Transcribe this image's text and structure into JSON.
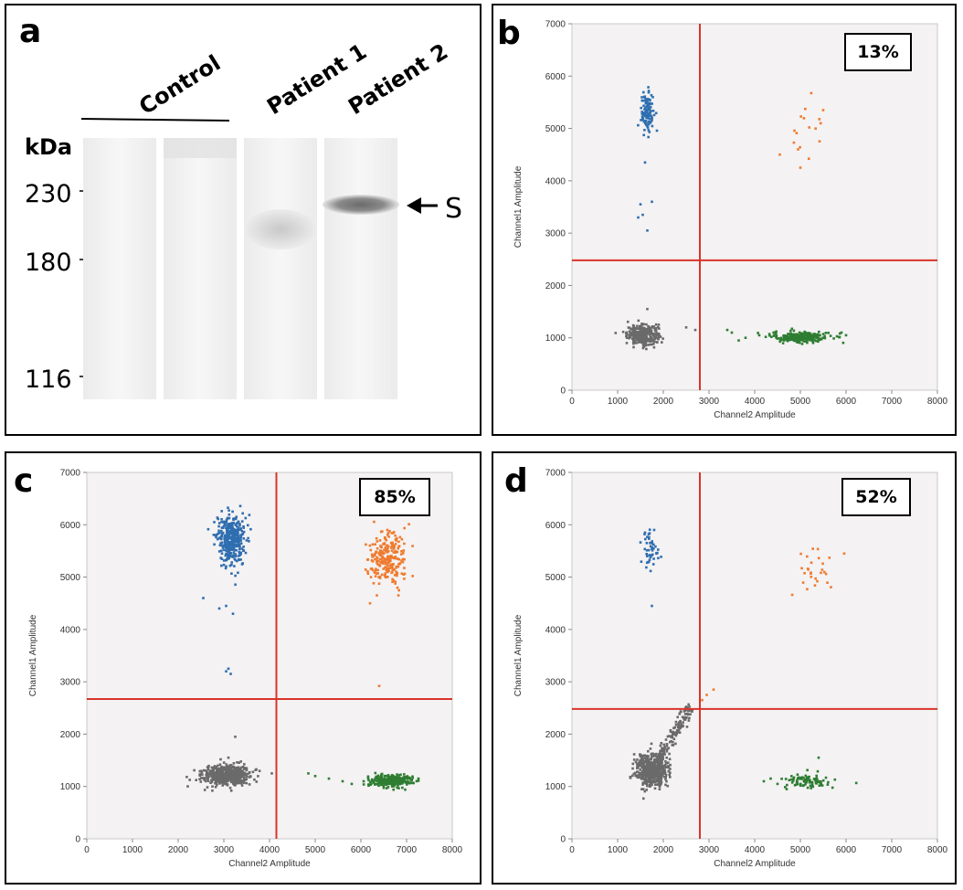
{
  "colors": {
    "plot_bg": "#f4f2f3",
    "threshold": "#d9342b",
    "blue": "#2f6eb0",
    "orange": "#ef7b2e",
    "green": "#2e7d32",
    "gray": "#6a6a6a"
  },
  "blot": {
    "letter": "a",
    "lanes": [
      {
        "group": "Control",
        "label": ""
      },
      {
        "group": "Control",
        "label": ""
      },
      {
        "group": "Patient 1",
        "label": "Patient 1"
      },
      {
        "group": "Patient 2",
        "label": "Patient 2"
      }
    ],
    "control_label": "Control",
    "patient1_label": "Patient 1",
    "patient2_label": "Patient 2",
    "unit_label": "kDa",
    "markers": [
      "230",
      "180",
      "116"
    ],
    "arrow_label": "S"
  },
  "chart_data": [
    {
      "panel": "b",
      "type": "scatter",
      "annotation": "13%",
      "xlabel": "Channel2 Amplitude",
      "ylabel": "Channel1 Amplitude",
      "xlim": [
        0,
        8000
      ],
      "ylim": [
        0,
        7000
      ],
      "xticks": [
        0,
        1000,
        2000,
        3000,
        4000,
        5000,
        6000,
        7000,
        8000
      ],
      "yticks": [
        0,
        1000,
        2000,
        3000,
        4000,
        5000,
        6000,
        7000
      ],
      "threshold_x": 2800,
      "threshold_y": 2480,
      "clusters": [
        {
          "color": "gray",
          "cx": 1550,
          "cy": 1060,
          "sx": 170,
          "sy": 90,
          "n": 320,
          "extra": [
            [
              1200,
              900
            ],
            [
              1350,
              820
            ],
            [
              1900,
              1250
            ],
            [
              2500,
              1200
            ],
            [
              2700,
              1150
            ],
            [
              1650,
              1550
            ]
          ]
        },
        {
          "color": "blue",
          "cx": 1650,
          "cy": 5300,
          "sx": 70,
          "sy": 190,
          "n": 110,
          "extra": [
            [
              1600,
              4350
            ],
            [
              1500,
              3550
            ],
            [
              1750,
              3600
            ],
            [
              1450,
              3300
            ],
            [
              1550,
              3350
            ],
            [
              1650,
              3050
            ]
          ]
        },
        {
          "color": "orange",
          "cx": 5200,
          "cy": 5000,
          "sx": 200,
          "sy": 280,
          "n": 14,
          "extra": [
            [
              4550,
              4500
            ],
            [
              5000,
              4250
            ],
            [
              4950,
              4600
            ],
            [
              5500,
              5350
            ]
          ]
        },
        {
          "color": "green",
          "cx": 5000,
          "cy": 1020,
          "sx": 320,
          "sy": 55,
          "n": 220,
          "extra": [
            [
              3500,
              1100
            ],
            [
              3800,
              1000
            ],
            [
              3400,
              1150
            ],
            [
              4100,
              1050
            ],
            [
              5900,
              1100
            ],
            [
              6000,
              1050
            ],
            [
              3650,
              950
            ]
          ]
        }
      ]
    },
    {
      "panel": "c",
      "type": "scatter",
      "annotation": "85%",
      "xlabel": "Channel2 Amplitude",
      "ylabel": "Channel1 Amplitude",
      "xlim": [
        0,
        8000
      ],
      "ylim": [
        0,
        7000
      ],
      "xticks": [
        0,
        1000,
        2000,
        3000,
        4000,
        5000,
        6000,
        7000,
        8000
      ],
      "yticks": [
        0,
        1000,
        2000,
        3000,
        4000,
        5000,
        6000,
        7000
      ],
      "threshold_x": 4150,
      "threshold_y": 2670,
      "clusters": [
        {
          "color": "gray",
          "cx": 3050,
          "cy": 1220,
          "sx": 260,
          "sy": 95,
          "n": 520,
          "extra": [
            [
              3250,
              1950
            ],
            [
              3100,
              1550
            ],
            [
              2750,
              1000
            ],
            [
              3500,
              1350
            ],
            [
              4050,
              1250
            ]
          ]
        },
        {
          "color": "blue",
          "cx": 3150,
          "cy": 5700,
          "sx": 150,
          "sy": 230,
          "n": 380,
          "extra": [
            [
              2550,
              4600
            ],
            [
              2900,
              4400
            ],
            [
              3050,
              4450
            ],
            [
              3200,
              4300
            ],
            [
              3100,
              3250
            ],
            [
              3150,
              3150
            ],
            [
              3050,
              3200
            ]
          ]
        },
        {
          "color": "orange",
          "cx": 6600,
          "cy": 5350,
          "sx": 230,
          "sy": 260,
          "n": 240,
          "extra": [
            [
              6200,
              4500
            ],
            [
              6350,
              4650
            ],
            [
              6400,
              2920
            ]
          ]
        },
        {
          "color": "green",
          "cx": 6650,
          "cy": 1110,
          "sx": 220,
          "sy": 55,
          "n": 300,
          "extra": [
            [
              4850,
              1250
            ],
            [
              5000,
              1200
            ],
            [
              5300,
              1150
            ],
            [
              5600,
              1100
            ],
            [
              5800,
              1050
            ]
          ]
        }
      ]
    },
    {
      "panel": "d",
      "type": "scatter",
      "annotation": "52%",
      "xlabel": "Channel2 Amplitude",
      "ylabel": "Channel1 Amplitude",
      "xlim": [
        0,
        8000
      ],
      "ylim": [
        0,
        7000
      ],
      "xticks": [
        0,
        1000,
        2000,
        3000,
        4000,
        5000,
        6000,
        7000,
        8000
      ],
      "yticks": [
        0,
        1000,
        2000,
        3000,
        4000,
        5000,
        6000,
        7000
      ],
      "threshold_x": 2800,
      "threshold_y": 2480,
      "clusters": [
        {
          "color": "gray",
          "cx": 1750,
          "cy": 1300,
          "sx": 180,
          "sy": 160,
          "n": 480,
          "diagonal_to": [
            2600,
            2500
          ],
          "diagonal_n": 140
        },
        {
          "color": "blue",
          "cx": 1700,
          "cy": 5500,
          "sx": 90,
          "sy": 170,
          "n": 45,
          "extra": [
            [
              1750,
              4450
            ],
            [
              1600,
              5850
            ],
            [
              1800,
              5900
            ]
          ]
        },
        {
          "color": "orange",
          "cx": 5400,
          "cy": 5100,
          "sx": 250,
          "sy": 250,
          "n": 28,
          "extra": [
            [
              2950,
              2750
            ],
            [
              3100,
              2850
            ],
            [
              2850,
              2650
            ]
          ]
        },
        {
          "color": "green",
          "cx": 5200,
          "cy": 1100,
          "sx": 250,
          "sy": 80,
          "n": 90,
          "extra": [
            [
              4200,
              1100
            ],
            [
              4350,
              1150
            ],
            [
              4500,
              1050
            ],
            [
              5400,
              1550
            ],
            [
              4700,
              950
            ]
          ]
        }
      ]
    }
  ]
}
